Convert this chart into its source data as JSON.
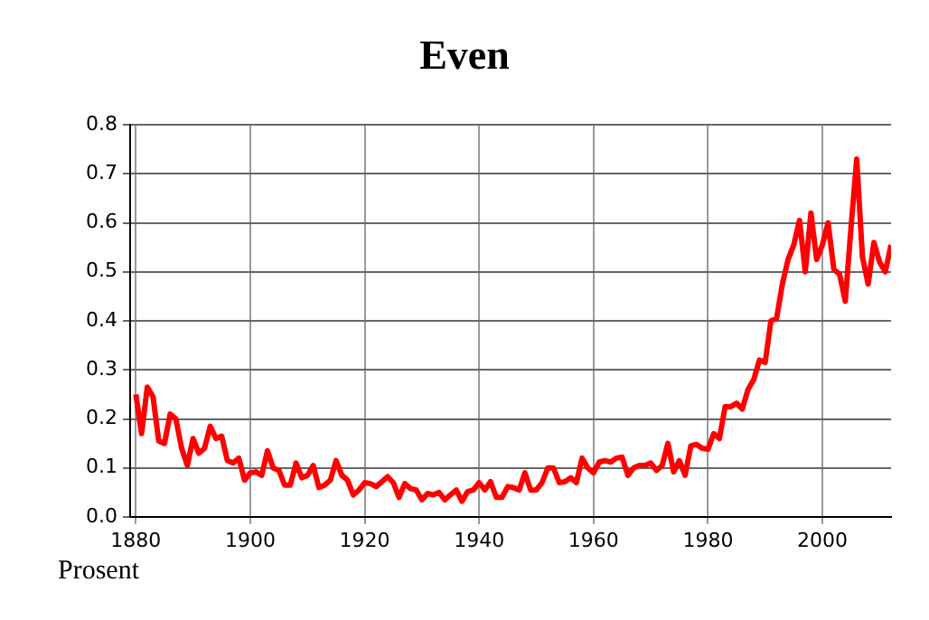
{
  "chart_data": {
    "type": "line",
    "title": "Even",
    "ylabel": "Prosent",
    "x": [
      1880,
      1881,
      1882,
      1883,
      1884,
      1885,
      1886,
      1887,
      1888,
      1889,
      1890,
      1891,
      1892,
      1893,
      1894,
      1895,
      1896,
      1897,
      1898,
      1899,
      1900,
      1901,
      1902,
      1903,
      1904,
      1905,
      1906,
      1907,
      1908,
      1909,
      1910,
      1911,
      1912,
      1913,
      1914,
      1915,
      1916,
      1917,
      1918,
      1919,
      1920,
      1921,
      1922,
      1923,
      1924,
      1925,
      1926,
      1927,
      1928,
      1929,
      1930,
      1931,
      1932,
      1933,
      1934,
      1935,
      1936,
      1937,
      1938,
      1939,
      1940,
      1941,
      1942,
      1943,
      1944,
      1945,
      1946,
      1947,
      1948,
      1949,
      1950,
      1951,
      1952,
      1953,
      1954,
      1955,
      1956,
      1957,
      1958,
      1959,
      1960,
      1961,
      1962,
      1963,
      1964,
      1965,
      1966,
      1967,
      1968,
      1969,
      1970,
      1971,
      1972,
      1973,
      1974,
      1975,
      1976,
      1977,
      1978,
      1979,
      1980,
      1981,
      1982,
      1983,
      1984,
      1985,
      1986,
      1987,
      1988,
      1989,
      1990,
      1991,
      1992,
      1993,
      1994,
      1995,
      1996,
      1997,
      1998,
      1999,
      2000,
      2001,
      2002,
      2003,
      2004,
      2005,
      2006,
      2007,
      2008,
      2009,
      2010,
      2011,
      2012
    ],
    "series": [
      {
        "color": "#ff0000",
        "values": [
          0.25,
          0.17,
          0.265,
          0.245,
          0.155,
          0.15,
          0.21,
          0.2,
          0.14,
          0.105,
          0.16,
          0.13,
          0.14,
          0.185,
          0.16,
          0.165,
          0.115,
          0.11,
          0.12,
          0.075,
          0.09,
          0.092,
          0.085,
          0.135,
          0.1,
          0.095,
          0.065,
          0.065,
          0.11,
          0.08,
          0.085,
          0.105,
          0.06,
          0.065,
          0.075,
          0.115,
          0.085,
          0.075,
          0.045,
          0.055,
          0.07,
          0.068,
          0.062,
          0.072,
          0.082,
          0.07,
          0.04,
          0.068,
          0.058,
          0.055,
          0.035,
          0.048,
          0.045,
          0.05,
          0.035,
          0.045,
          0.055,
          0.032,
          0.052,
          0.055,
          0.07,
          0.055,
          0.072,
          0.04,
          0.04,
          0.062,
          0.06,
          0.055,
          0.09,
          0.055,
          0.055,
          0.07,
          0.1,
          0.1,
          0.07,
          0.072,
          0.08,
          0.07,
          0.12,
          0.1,
          0.09,
          0.112,
          0.115,
          0.112,
          0.12,
          0.122,
          0.085,
          0.1,
          0.105,
          0.105,
          0.11,
          0.095,
          0.105,
          0.15,
          0.092,
          0.115,
          0.085,
          0.145,
          0.148,
          0.14,
          0.138,
          0.17,
          0.16,
          0.225,
          0.225,
          0.232,
          0.22,
          0.26,
          0.28,
          0.32,
          0.315,
          0.4,
          0.405,
          0.475,
          0.525,
          0.555,
          0.605,
          0.5,
          0.62,
          0.525,
          0.555,
          0.6,
          0.505,
          0.495,
          0.44,
          0.59,
          0.73,
          0.53,
          0.475,
          0.56,
          0.52,
          0.5,
          0.555
        ]
      }
    ],
    "xlim": [
      1879,
      2012
    ],
    "xticks": [
      1880,
      1900,
      1920,
      1940,
      1960,
      1980,
      2000
    ],
    "ylim": [
      0,
      0.8
    ],
    "yticks": [
      {
        "value": 0,
        "label": "0.0"
      },
      {
        "value": 0.1,
        "label": "0.1"
      },
      {
        "value": 0.2,
        "label": "0.2"
      },
      {
        "value": 0.3,
        "label": "0.3"
      },
      {
        "value": 0.4,
        "label": "0.4"
      },
      {
        "value": 0.5,
        "label": "0.5"
      },
      {
        "value": 0.6,
        "label": "0.6"
      },
      {
        "value": 0.7,
        "label": "0.7"
      },
      {
        "value": 0.8,
        "label": "0.8"
      }
    ],
    "grid": true,
    "marker": "none",
    "line_style": "solid"
  }
}
